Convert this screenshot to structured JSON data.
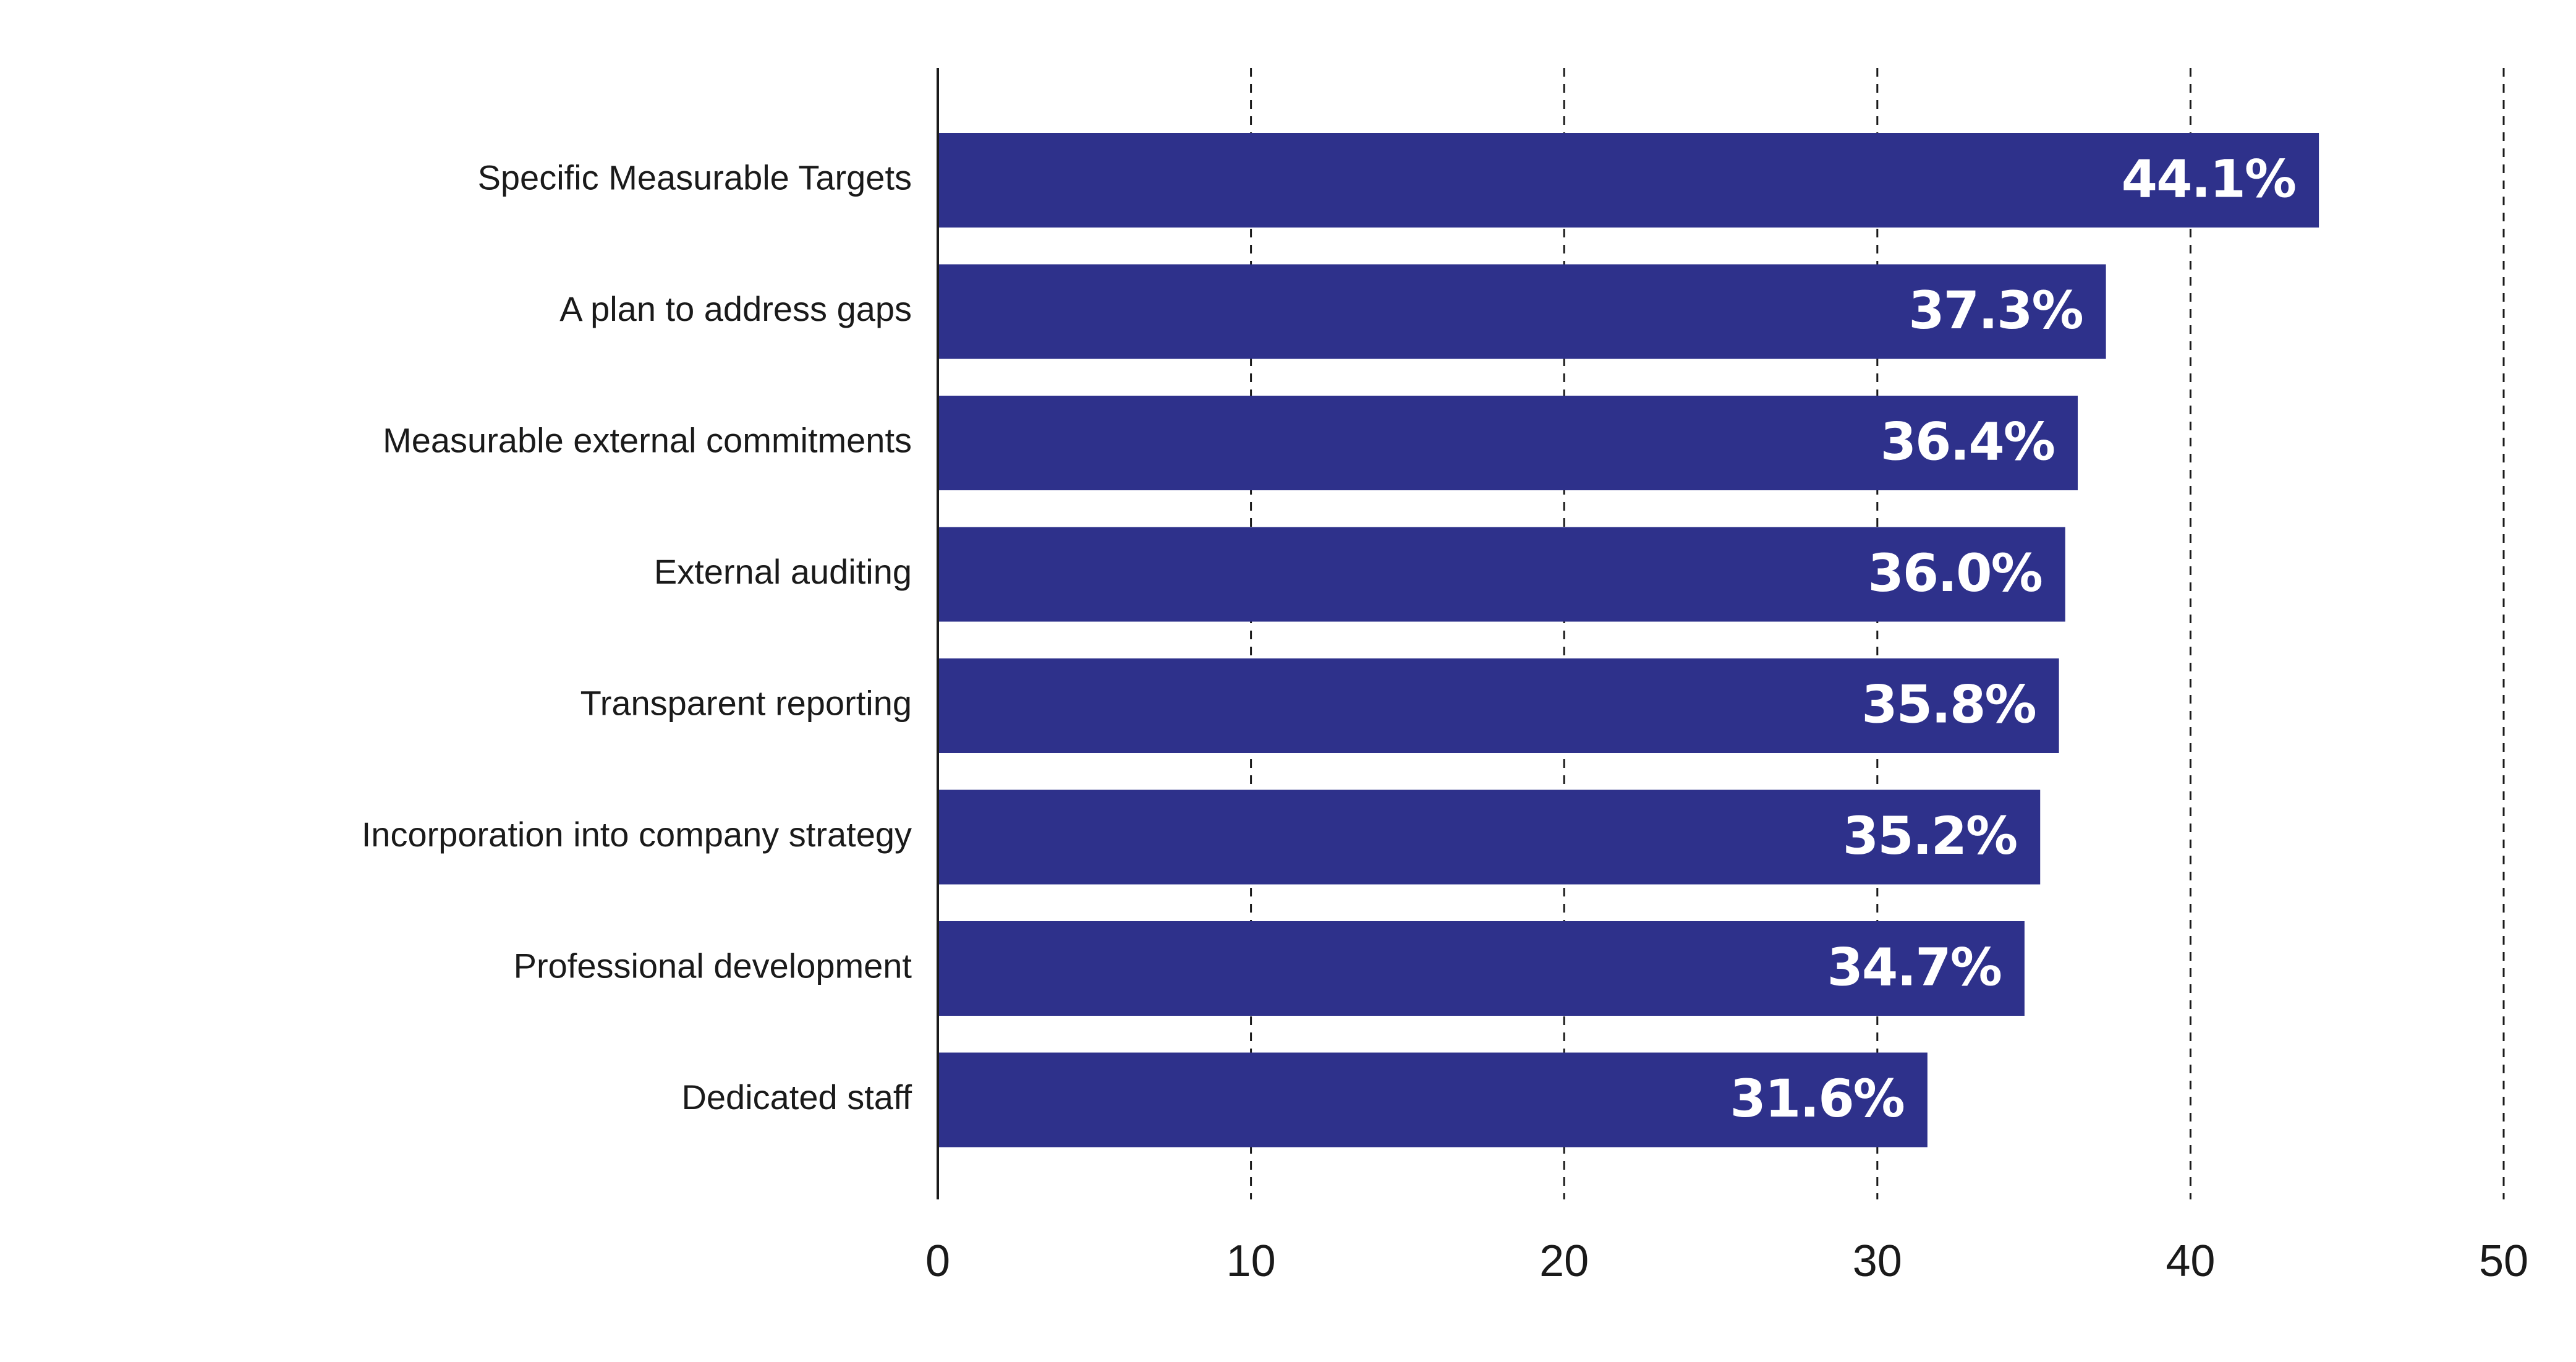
{
  "chart_data": {
    "type": "bar",
    "orientation": "horizontal",
    "title": "",
    "xlabel": "",
    "ylabel": "",
    "xlim": [
      0,
      50
    ],
    "xticks": [
      0,
      10,
      20,
      30,
      40,
      50
    ],
    "xtick_labels": [
      "0",
      "10",
      "20",
      "30",
      "40",
      "50"
    ],
    "grid": "vertical dashed",
    "categories": [
      "Specific Measurable Targets",
      "A plan to address gaps",
      "Measurable external commitments",
      "External auditing",
      "Transparent reporting",
      "Incorporation into company strategy",
      "Professional development",
      "Dedicated staff"
    ],
    "values": [
      44.1,
      37.3,
      36.4,
      36.0,
      35.8,
      35.2,
      34.7,
      31.6
    ],
    "data_labels": [
      "44.1%",
      "37.3%",
      "36.4%",
      "36.0%",
      "35.8%",
      "35.2%",
      "34.7%",
      "31.6%"
    ],
    "colors": {
      "bar": "#2e318b",
      "data_label": "#ffffff",
      "axis": "#1a1a1a",
      "grid": "#1a1a1a"
    }
  }
}
